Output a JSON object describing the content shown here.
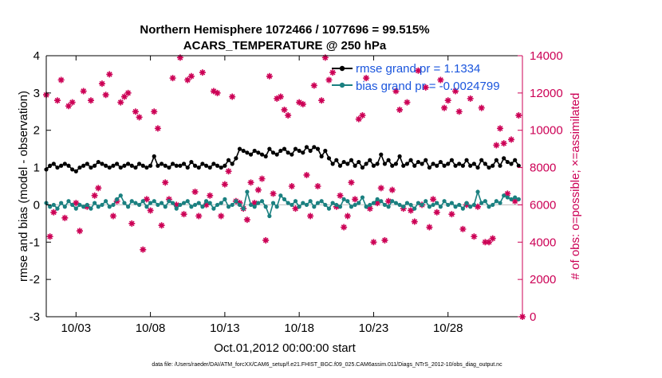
{
  "titles": {
    "line1": "Northern Hemisphere 1072466 / 1077696 = 99.515%",
    "line2": "ACARS_TEMPERATURE @ 250 hPa"
  },
  "footer": "data file: /Users/raeder/DAI/ATM_forcXX/CAM6_setup/f.e21.FHIST_BGC.f09_025.CAM6assim.011/Diags_NTrS_2012-10/obs_diag_output.nc",
  "colors": {
    "rmse": "#000000",
    "bias": "#1a8080",
    "obs": "#cc0055",
    "legend_text": "#1a55dd",
    "zero_line": "#bbbbbb"
  },
  "chart_data": {
    "type": "line",
    "xlabel": "Oct.01,2012 00:00:00 start",
    "ylabel_left": "rmse and bias (model - observation)",
    "ylabel_right": "# of obs: o=possible; ×=assimilated",
    "x_range_days": [
      1,
      33
    ],
    "ylim_left": [
      -3,
      4
    ],
    "ylim_right": [
      0,
      14000
    ],
    "grid": false,
    "legend_position": "top-right",
    "x_ticks": [
      {
        "day": 3,
        "label": "10/03"
      },
      {
        "day": 8,
        "label": "10/08"
      },
      {
        "day": 13,
        "label": "10/13"
      },
      {
        "day": 18,
        "label": "10/18"
      },
      {
        "day": 23,
        "label": "10/23"
      },
      {
        "day": 28,
        "label": "10/28"
      }
    ],
    "y_left_ticks": [
      {
        "value": 4,
        "label": "4"
      },
      {
        "value": 3,
        "label": "3"
      },
      {
        "value": 2,
        "label": "2"
      },
      {
        "value": 1,
        "label": "1"
      },
      {
        "value": 0,
        "label": "0"
      },
      {
        "value": -1,
        "label": "-1"
      },
      {
        "value": -2,
        "label": "-2"
      },
      {
        "value": -3,
        "label": "-3"
      }
    ],
    "y_right_ticks": [
      {
        "value": 14000,
        "label": "14000"
      },
      {
        "value": 12000,
        "label": "12000"
      },
      {
        "value": 10000,
        "label": "10000"
      },
      {
        "value": 8000,
        "label": "8000"
      },
      {
        "value": 6000,
        "label": "6000"
      },
      {
        "value": 4000,
        "label": "4000"
      },
      {
        "value": 2000,
        "label": "2000"
      },
      {
        "value": 0,
        "label": "0"
      }
    ],
    "series": [
      {
        "name": "rmse grand pr = 1.1334",
        "axis": "left",
        "x": [
          1.0,
          1.25,
          1.5,
          1.75,
          2.0,
          2.25,
          2.5,
          2.75,
          3.0,
          3.25,
          3.5,
          3.75,
          4.0,
          4.25,
          4.5,
          4.75,
          5.0,
          5.25,
          5.5,
          5.75,
          6.0,
          6.25,
          6.5,
          6.75,
          7.0,
          7.25,
          7.5,
          7.75,
          8.0,
          8.25,
          8.5,
          8.75,
          9.0,
          9.25,
          9.5,
          9.75,
          10.0,
          10.25,
          10.5,
          10.75,
          11.0,
          11.25,
          11.5,
          11.75,
          12.0,
          12.25,
          12.5,
          12.75,
          13.0,
          13.25,
          13.5,
          13.75,
          14.0,
          14.25,
          14.5,
          14.75,
          15.0,
          15.25,
          15.5,
          15.75,
          16.0,
          16.25,
          16.5,
          16.75,
          17.0,
          17.25,
          17.5,
          17.75,
          18.0,
          18.25,
          18.5,
          18.75,
          19.0,
          19.25,
          19.5,
          19.75,
          20.0,
          20.25,
          20.5,
          20.75,
          21.0,
          21.25,
          21.5,
          21.75,
          22.0,
          22.25,
          22.5,
          22.75,
          23.0,
          23.25,
          23.5,
          23.75,
          24.0,
          24.25,
          24.5,
          24.75,
          25.0,
          25.25,
          25.5,
          25.75,
          26.0,
          26.25,
          26.5,
          26.75,
          27.0,
          27.25,
          27.5,
          27.75,
          28.0,
          28.25,
          28.5,
          28.75,
          29.0,
          29.25,
          29.5,
          29.75,
          30.0,
          30.25,
          30.5,
          30.75,
          31.0,
          31.25,
          31.5,
          31.75,
          32.0,
          32.25,
          32.5,
          32.75
        ],
        "values": [
          0.95,
          1.05,
          1.1,
          1.0,
          1.05,
          1.1,
          1.05,
          0.95,
          0.9,
          1.0,
          1.05,
          1.1,
          1.0,
          1.05,
          1.15,
          1.1,
          1.05,
          1.0,
          1.05,
          1.1,
          1.0,
          1.05,
          1.1,
          1.05,
          1.0,
          1.1,
          1.05,
          1.0,
          1.05,
          1.3,
          1.05,
          1.1,
          1.05,
          1.0,
          1.1,
          1.05,
          1.05,
          1.1,
          1.0,
          1.15,
          1.05,
          1.0,
          1.1,
          1.05,
          1.0,
          1.1,
          1.05,
          1.0,
          1.05,
          1.2,
          1.1,
          1.25,
          1.5,
          1.45,
          1.4,
          1.35,
          1.45,
          1.4,
          1.35,
          1.3,
          1.5,
          1.4,
          1.35,
          1.45,
          1.5,
          1.4,
          1.35,
          1.5,
          1.45,
          1.4,
          1.55,
          1.45,
          1.55,
          1.5,
          1.3,
          1.45,
          1.25,
          1.1,
          1.2,
          1.05,
          1.15,
          1.1,
          1.2,
          1.05,
          1.15,
          1.0,
          1.1,
          1.2,
          1.05,
          1.1,
          1.35,
          1.1,
          1.2,
          1.05,
          1.1,
          1.3,
          1.05,
          1.1,
          1.2,
          1.05,
          1.15,
          1.1,
          1.2,
          1.0,
          1.1,
          1.05,
          1.15,
          1.05,
          1.1,
          1.2,
          1.05,
          1.1,
          1.05,
          1.2,
          1.05,
          1.1,
          1.0,
          1.2,
          1.1,
          1.0,
          1.05,
          1.2,
          1.05,
          1.25,
          1.15,
          1.1,
          1.2,
          1.05
        ]
      },
      {
        "name": "bias grand pr = -0.0024799",
        "axis": "left",
        "x": [
          1.0,
          1.25,
          1.5,
          1.75,
          2.0,
          2.25,
          2.5,
          2.75,
          3.0,
          3.25,
          3.5,
          3.75,
          4.0,
          4.25,
          4.5,
          4.75,
          5.0,
          5.25,
          5.5,
          5.75,
          6.0,
          6.25,
          6.5,
          6.75,
          7.0,
          7.25,
          7.5,
          7.75,
          8.0,
          8.25,
          8.5,
          8.75,
          9.0,
          9.25,
          9.5,
          9.75,
          10.0,
          10.25,
          10.5,
          10.75,
          11.0,
          11.25,
          11.5,
          11.75,
          12.0,
          12.25,
          12.5,
          12.75,
          13.0,
          13.25,
          13.5,
          13.75,
          14.0,
          14.25,
          14.5,
          14.75,
          15.0,
          15.25,
          15.5,
          15.75,
          16.0,
          16.25,
          16.5,
          16.75,
          17.0,
          17.25,
          17.5,
          17.75,
          18.0,
          18.25,
          18.5,
          18.75,
          19.0,
          19.25,
          19.5,
          19.75,
          20.0,
          20.25,
          20.5,
          20.75,
          21.0,
          21.25,
          21.5,
          21.75,
          22.0,
          22.25,
          22.5,
          22.75,
          23.0,
          23.25,
          23.5,
          23.75,
          24.0,
          24.25,
          24.5,
          24.75,
          25.0,
          25.25,
          25.5,
          25.75,
          26.0,
          26.25,
          26.5,
          26.75,
          27.0,
          27.25,
          27.5,
          27.75,
          28.0,
          28.25,
          28.5,
          28.75,
          29.0,
          29.25,
          29.5,
          29.75,
          30.0,
          30.25,
          30.5,
          30.75,
          31.0,
          31.25,
          31.5,
          31.75,
          32.0,
          32.25,
          32.5,
          32.75
        ],
        "values": [
          0.05,
          -0.05,
          0.0,
          -0.1,
          0.05,
          -0.05,
          0.1,
          0.0,
          -0.1,
          0.0,
          -0.05,
          0.0,
          -0.1,
          0.05,
          -0.05,
          0.0,
          0.1,
          -0.05,
          0.0,
          0.15,
          0.25,
          0.05,
          -0.05,
          0.1,
          0.05,
          0.0,
          0.1,
          -0.05,
          0.05,
          0.1,
          0.0,
          0.05,
          -0.05,
          0.1,
          0.05,
          -0.1,
          0.0,
          0.05,
          0.1,
          -0.05,
          0.0,
          0.05,
          -0.05,
          0.1,
          0.05,
          -0.1,
          0.0,
          0.05,
          0.15,
          -0.05,
          0.0,
          0.1,
          0.0,
          -0.1,
          0.35,
          0.0,
          -0.05,
          0.05,
          0.1,
          -0.05,
          -0.3,
          0.05,
          -0.05,
          0.25,
          0.15,
          0.05,
          0.0,
          0.1,
          -0.05,
          0.05,
          0.0,
          0.1,
          -0.05,
          0.05,
          0.1,
          0.0,
          -0.1,
          0.05,
          0.0,
          -0.05,
          0.15,
          0.1,
          -0.05,
          0.0,
          0.05,
          0.2,
          -0.05,
          0.0,
          0.05,
          0.15,
          0.1,
          0.0,
          -0.05,
          0.1,
          0.05,
          0.0,
          -0.05,
          0.05,
          0.0,
          -0.1,
          0.05,
          0.0,
          0.1,
          -0.05,
          0.0,
          0.05,
          -0.05,
          0.1,
          0.0,
          0.05,
          -0.05,
          0.0,
          -0.1,
          0.05,
          -0.05,
          0.0,
          0.35,
          0.05,
          0.1,
          -0.05,
          0.0,
          0.1,
          0.05,
          0.25,
          0.2,
          0.15,
          0.2,
          0.15
        ]
      },
      {
        "name": "obs",
        "axis": "right",
        "x": [
          1.0,
          1.25,
          1.5,
          1.75,
          2.0,
          2.25,
          2.5,
          2.75,
          3.0,
          3.25,
          3.5,
          3.75,
          4.0,
          4.25,
          4.5,
          4.75,
          5.0,
          5.25,
          5.5,
          5.75,
          6.0,
          6.25,
          6.5,
          6.75,
          7.0,
          7.25,
          7.5,
          7.75,
          8.0,
          8.25,
          8.5,
          8.75,
          9.0,
          9.25,
          9.5,
          9.75,
          10.0,
          10.25,
          10.5,
          10.75,
          11.0,
          11.25,
          11.5,
          11.75,
          12.0,
          12.25,
          12.5,
          12.75,
          13.0,
          13.25,
          13.5,
          13.75,
          14.0,
          14.25,
          14.5,
          14.75,
          15.0,
          15.25,
          15.5,
          15.75,
          16.0,
          16.25,
          16.5,
          16.75,
          17.0,
          17.25,
          17.5,
          17.75,
          18.0,
          18.25,
          18.5,
          18.75,
          19.0,
          19.25,
          19.5,
          19.75,
          20.0,
          20.25,
          20.5,
          20.75,
          21.0,
          21.25,
          21.5,
          21.75,
          22.0,
          22.25,
          22.5,
          22.75,
          23.0,
          23.25,
          23.5,
          23.75,
          24.0,
          24.25,
          24.5,
          24.75,
          25.0,
          25.25,
          25.5,
          25.75,
          26.0,
          26.25,
          26.5,
          26.75,
          27.0,
          27.25,
          27.5,
          27.75,
          28.0,
          28.25,
          28.5,
          28.75,
          29.0,
          29.25,
          29.5,
          29.75,
          30.0,
          30.25,
          30.5,
          30.75,
          31.0,
          31.25,
          31.5,
          31.75,
          32.0,
          32.25,
          32.5,
          32.75,
          33.0
        ],
        "values": [
          11900,
          4300,
          5600,
          11600,
          12700,
          5300,
          11300,
          11500,
          6100,
          4600,
          12100,
          5900,
          11600,
          6500,
          6900,
          12500,
          11900,
          13000,
          5400,
          6200,
          11500,
          11800,
          12000,
          5000,
          11000,
          10700,
          3600,
          6300,
          5700,
          11000,
          10100,
          4900,
          7200,
          6300,
          12800,
          6000,
          13900,
          5500,
          12700,
          12900,
          6700,
          5400,
          13100,
          6000,
          6500,
          12100,
          12000,
          5400,
          7100,
          7800,
          11800,
          6200,
          6100,
          5800,
          5200,
          7200,
          6100,
          6800,
          7400,
          4100,
          12900,
          6600,
          11700,
          11800,
          11100,
          10800,
          7000,
          5800,
          11500,
          11400,
          7600,
          5400,
          12400,
          7000,
          11600,
          13900,
          12700,
          13100,
          5900,
          6500,
          4800,
          5400,
          7200,
          6300,
          10600,
          10800,
          12800,
          5800,
          4000,
          6100,
          6900,
          4100,
          6200,
          6800,
          12100,
          11100,
          5800,
          11500,
          5700,
          5100,
          13200,
          6000,
          12300,
          4800,
          6300,
          5600,
          12700,
          11200,
          11600,
          5500,
          12100,
          11000,
          4700,
          6000,
          11700,
          4300,
          5900,
          11200,
          4000,
          4000,
          4200,
          9200,
          10100,
          9300,
          6600,
          9500,
          6200,
          10800,
          0
        ]
      }
    ]
  }
}
